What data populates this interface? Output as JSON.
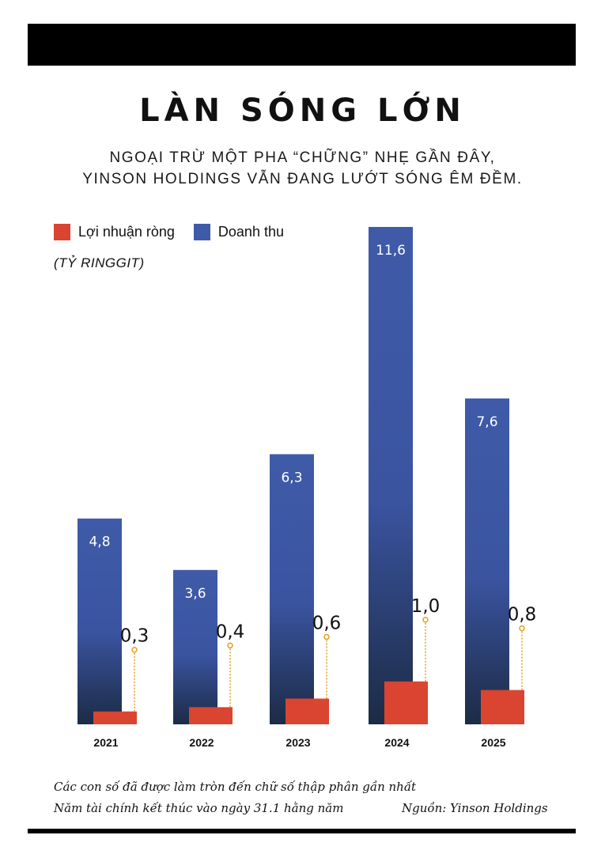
{
  "title": "LÀN SÓNG LỚN",
  "subtitle_lines": [
    "NGOẠI TRỪ MỘT PHA “CHỮNG” NHẸ GẦN ĐÂY,",
    "YINSON HOLDINGS VẪN ĐANG LƯỚT SÓNG ÊM ĐỀM."
  ],
  "unit": "(TỶ RINGGIT)",
  "notes": {
    "rounding": "Các con số đã được làm tròn đến chữ số thập phân gần nhất",
    "fiscal": "Năm tài chính kết thúc vào ngày 31.1 hằng năm",
    "source": "Nguồn: Yinson Holdings"
  },
  "colors": {
    "revenue_top": "#3f5ba8",
    "revenue_bottom": "#1c2b45",
    "profit": "#d94530",
    "leader": "#e0a020"
  },
  "chart_data": {
    "type": "bar",
    "categories": [
      "2021",
      "2022",
      "2023",
      "2024",
      "2025"
    ],
    "series": [
      {
        "name": "Lợi nhuận ròng",
        "values": [
          0.3,
          0.4,
          0.6,
          1.0,
          0.8
        ],
        "labels": [
          "0,3",
          "0,4",
          "0,6",
          "1,0",
          "0,8"
        ]
      },
      {
        "name": "Doanh thu",
        "values": [
          4.8,
          3.6,
          6.3,
          11.6,
          7.6
        ],
        "labels": [
          "4,8",
          "3,6",
          "6,3",
          "11,6",
          "7,6"
        ]
      }
    ],
    "ylim": [
      0,
      11.6
    ],
    "legend_position": "top-left",
    "grid": false
  }
}
